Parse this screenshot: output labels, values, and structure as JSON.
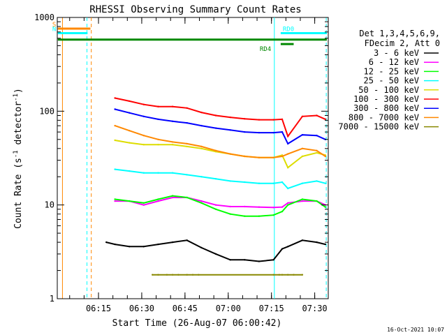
{
  "chart_data": {
    "type": "line",
    "title": "RHESSI Observing Summary Count Rates",
    "xlabel": "Start Time (26-Aug-07 06:00:42)",
    "ylabel_parts": [
      "Count Rate (s",
      "-1",
      " detector",
      "-1",
      ")"
    ],
    "y_scale": "log",
    "ylim": [
      1,
      1000
    ],
    "xlim_minutes": [
      0,
      94
    ],
    "x_ticks": [
      {
        "label": "06:15",
        "minutes": 14.3
      },
      {
        "label": "06:30",
        "minutes": 29.3
      },
      {
        "label": "06:45",
        "minutes": 44.3
      },
      {
        "label": "07:00",
        "minutes": 59.3
      },
      {
        "label": "07:15",
        "minutes": 74.3
      },
      {
        "label": "07:30",
        "minutes": 89.3
      }
    ],
    "y_ticks": [
      {
        "label": "1",
        "value": 1
      },
      {
        "label": "10",
        "value": 10
      },
      {
        "label": "100",
        "value": 100
      },
      {
        "label": "1000",
        "value": 1000
      }
    ],
    "legend_header": [
      "Det 1,3,4,5,6,9,",
      "FDecim 2, Att 0"
    ],
    "legend_position": "top-right outside plot",
    "series": [
      {
        "name": "3 - 6 keV",
        "color": "#000000",
        "x": [
          17,
          20,
          25,
          30,
          35,
          40,
          45,
          50,
          55,
          60,
          65,
          70,
          75,
          78,
          80,
          85,
          90,
          93
        ],
        "y": [
          4.0,
          3.8,
          3.6,
          3.6,
          3.8,
          4.0,
          4.2,
          3.5,
          3.0,
          2.6,
          2.6,
          2.5,
          2.6,
          3.4,
          3.6,
          4.2,
          4.0,
          3.8
        ]
      },
      {
        "name": "6 - 12 keV",
        "color": "#ff00ff",
        "x": [
          20,
          25,
          30,
          35,
          40,
          45,
          50,
          55,
          60,
          65,
          70,
          75,
          78,
          80,
          85,
          90,
          93
        ],
        "y": [
          11,
          11,
          10,
          11,
          12,
          12,
          11,
          10,
          9.6,
          9.6,
          9.5,
          9.4,
          9.5,
          10.5,
          11,
          11,
          10
        ]
      },
      {
        "name": "12 - 25 keV",
        "color": "#00ff00",
        "x": [
          20,
          25,
          30,
          35,
          40,
          45,
          50,
          55,
          60,
          65,
          70,
          75,
          78,
          80,
          85,
          90,
          93
        ],
        "y": [
          11.5,
          11,
          10.5,
          11.5,
          12.5,
          12,
          10.5,
          9,
          8,
          7.6,
          7.6,
          7.8,
          8.5,
          10,
          11.5,
          11,
          9.5
        ]
      },
      {
        "name": "25 - 50 keV",
        "color": "#00ffff",
        "x": [
          20,
          25,
          30,
          35,
          40,
          45,
          50,
          55,
          60,
          65,
          70,
          75,
          78,
          80,
          85,
          90,
          93
        ],
        "y": [
          24,
          23,
          22,
          22,
          22,
          21,
          20,
          19,
          18,
          17.5,
          17,
          17,
          17.5,
          15,
          17,
          18,
          17
        ]
      },
      {
        "name": "50 - 100 keV",
        "color": "#dddd00",
        "x": [
          20,
          25,
          30,
          35,
          40,
          45,
          50,
          55,
          60,
          65,
          70,
          75,
          78,
          80,
          85,
          90,
          93
        ],
        "y": [
          49,
          46,
          44,
          44,
          44,
          42,
          40,
          37,
          35,
          33,
          32,
          32,
          34,
          25,
          33,
          36,
          34
        ]
      },
      {
        "name": "100 - 300 keV",
        "color": "#ff0000",
        "x": [
          20,
          25,
          30,
          35,
          40,
          45,
          50,
          55,
          60,
          65,
          70,
          75,
          78,
          80,
          85,
          90,
          93
        ],
        "y": [
          138,
          128,
          118,
          112,
          112,
          108,
          97,
          90,
          86,
          83,
          81,
          81,
          82,
          54,
          88,
          90,
          82
        ]
      },
      {
        "name": "300 - 800 keV",
        "color": "#0000ff",
        "x": [
          20,
          25,
          30,
          35,
          40,
          45,
          50,
          55,
          60,
          65,
          70,
          75,
          78,
          80,
          85,
          90,
          93
        ],
        "y": [
          105,
          96,
          88,
          82,
          78,
          75,
          70,
          66,
          63,
          60,
          59,
          59,
          60,
          45,
          56,
          55,
          50
        ]
      },
      {
        "name": "800 - 7000 keV",
        "color": "#ff8800",
        "x": [
          20,
          25,
          30,
          35,
          40,
          45,
          50,
          55,
          60,
          65,
          70,
          75,
          78,
          80,
          85,
          90,
          93
        ],
        "y": [
          70,
          62,
          55,
          50,
          47,
          45,
          42,
          38,
          35,
          33,
          32,
          32,
          33,
          35,
          40,
          38,
          33
        ]
      },
      {
        "name": "7000 - 15000 keV",
        "color": "#888800",
        "x": [
          33,
          35,
          38,
          40,
          42,
          45,
          47,
          49,
          75,
          77,
          78,
          80,
          82,
          85
        ],
        "y": [
          1.8,
          1.8,
          1.8,
          1.8,
          1.8,
          1.8,
          1.8,
          1.8,
          1.8,
          1.8,
          1.8,
          1.8,
          1.8,
          1.8
        ]
      }
    ],
    "flags": [
      {
        "label": "S",
        "color": "#ff8800",
        "y": 760,
        "x0": 0.2,
        "x1": 11.5
      },
      {
        "label": "N",
        "color": "#00ffff",
        "y": 680,
        "x0": 0.2,
        "x1": 10.5
      },
      {
        "label": "",
        "color": "#008800",
        "y": 580,
        "x0": 0.2,
        "x1": 93.5
      },
      {
        "label": "RD0",
        "color": "#00ffff",
        "y": 680,
        "x0": 77.5,
        "x1": 93.5
      },
      {
        "label": "RD4",
        "color": "#008800",
        "y": 520,
        "x0": 77.5,
        "x1": 82
      }
    ],
    "vertical_markers": [
      {
        "color": "#ff8800",
        "style": "solid",
        "x": 1.8
      },
      {
        "color": "#00ffff",
        "style": "dashed",
        "x": 10.3
      },
      {
        "color": "#ff8800",
        "style": "dashed",
        "x": 11.8
      },
      {
        "color": "#00ffff",
        "style": "solid",
        "x": 75.3
      },
      {
        "color": "#00ffff",
        "style": "dashed",
        "x": 93.3
      }
    ],
    "timestamp": "16-Oct-2021 10:07"
  }
}
